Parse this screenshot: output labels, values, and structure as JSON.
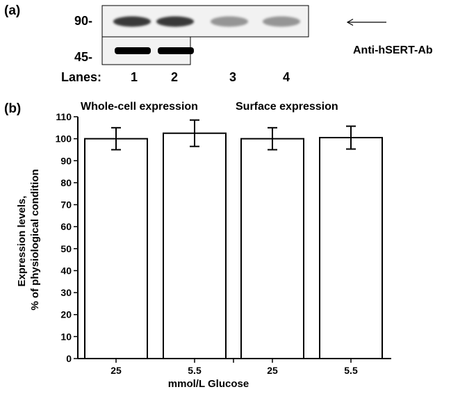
{
  "panel_a": {
    "label": "(a)",
    "marker_90": "90-",
    "marker_45": "45-",
    "antibody": "Anti-hSERT-Ab",
    "lanes_label": "Lanes:",
    "lanes": [
      "1",
      "2",
      "3",
      "4"
    ],
    "band_90_intensity": [
      0.85,
      0.85,
      0.45,
      0.45
    ],
    "band_45_intensity": [
      1.0,
      1.0
    ]
  },
  "panel_b": {
    "label": "(b)",
    "group_labels": [
      "Whole-cell expression",
      "Surface expression"
    ]
  },
  "chart_data": {
    "type": "bar",
    "categories": [
      "25",
      "5.5",
      "25",
      "5.5"
    ],
    "values": [
      100,
      102.5,
      100,
      100.5
    ],
    "error": [
      5,
      6,
      5,
      5.2
    ],
    "ylabel": "Expression levels,\n% of physiological condition",
    "xlabel": "mmol/L Glucose",
    "ylim": [
      0,
      110
    ],
    "yticks": [
      0,
      10,
      20,
      30,
      40,
      50,
      60,
      70,
      80,
      90,
      100,
      110
    ],
    "grid": false,
    "bar_color": "#ffffff",
    "edge_color": "#000000"
  }
}
